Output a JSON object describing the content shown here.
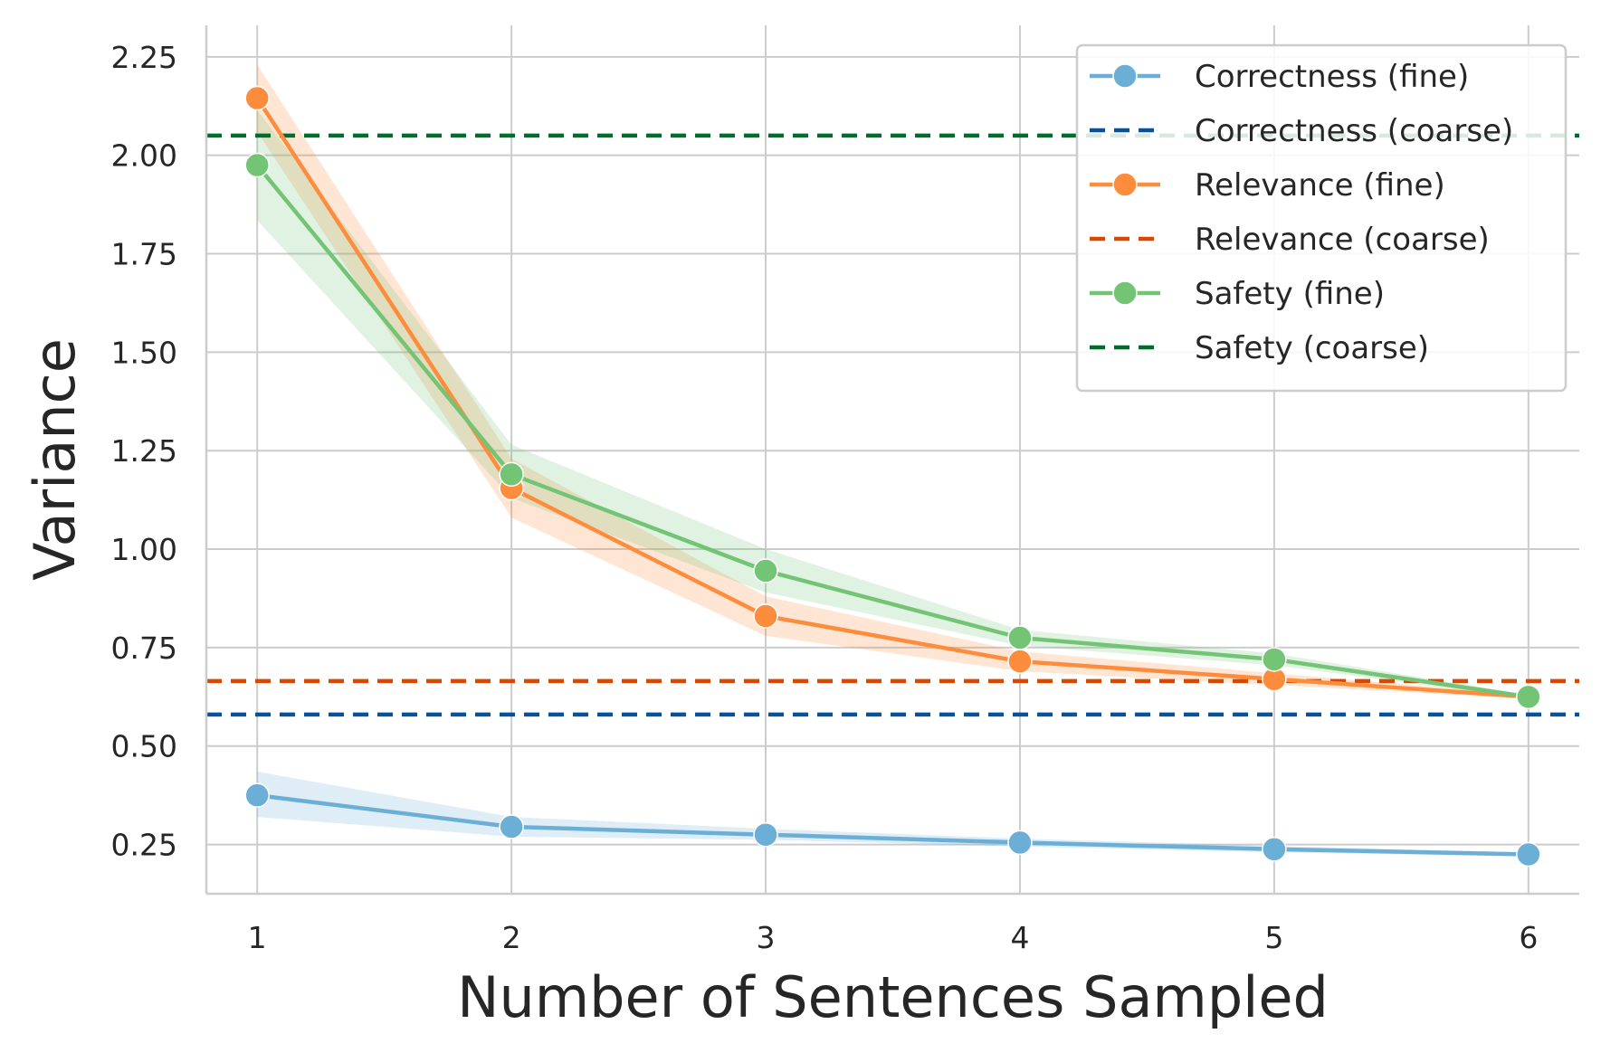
{
  "chart_data": {
    "type": "line",
    "xlabel": "Number of Sentences Sampled",
    "ylabel": "Variance",
    "x": [
      1,
      2,
      3,
      4,
      5,
      6
    ],
    "xlim": [
      0.8,
      6.2
    ],
    "ylim": [
      0.125,
      2.33
    ],
    "xticks": [
      "1",
      "2",
      "3",
      "4",
      "5",
      "6"
    ],
    "yticks": [
      "0.25",
      "0.50",
      "0.75",
      "1.00",
      "1.25",
      "1.50",
      "1.75",
      "2.00",
      "2.25"
    ],
    "grid": true,
    "legend_position": "top-right",
    "series": [
      {
        "name": "Correctness (fine)",
        "style": "solid-marker",
        "color": "#6baed6",
        "values": [
          0.375,
          0.295,
          0.275,
          0.255,
          0.238,
          0.225
        ],
        "lower": [
          0.32,
          0.27,
          0.262,
          0.245,
          0.23,
          0.22
        ],
        "upper": [
          0.435,
          0.32,
          0.29,
          0.265,
          0.246,
          0.23
        ]
      },
      {
        "name": "Correctness (coarse)",
        "style": "dashed",
        "color": "#08519c",
        "value": 0.58
      },
      {
        "name": "Relevance (fine)",
        "style": "solid-marker",
        "color": "#fd8d3c",
        "values": [
          2.145,
          1.155,
          0.83,
          0.715,
          0.67,
          0.625
        ],
        "lower": [
          2.06,
          1.08,
          0.78,
          0.69,
          0.655,
          0.62
        ],
        "upper": [
          2.23,
          1.23,
          0.88,
          0.74,
          0.685,
          0.63
        ]
      },
      {
        "name": "Relevance (coarse)",
        "style": "dashed",
        "color": "#d94801",
        "value": 0.665
      },
      {
        "name": "Safety (fine)",
        "style": "solid-marker",
        "color": "#74c476",
        "values": [
          1.975,
          1.19,
          0.945,
          0.775,
          0.72,
          0.625
        ],
        "lower": [
          1.835,
          1.13,
          0.89,
          0.755,
          0.705,
          0.62
        ],
        "upper": [
          2.115,
          1.265,
          1.0,
          0.795,
          0.735,
          0.63
        ]
      },
      {
        "name": "Safety (coarse)",
        "style": "dashed",
        "color": "#006d2c",
        "value": 2.05
      }
    ]
  }
}
